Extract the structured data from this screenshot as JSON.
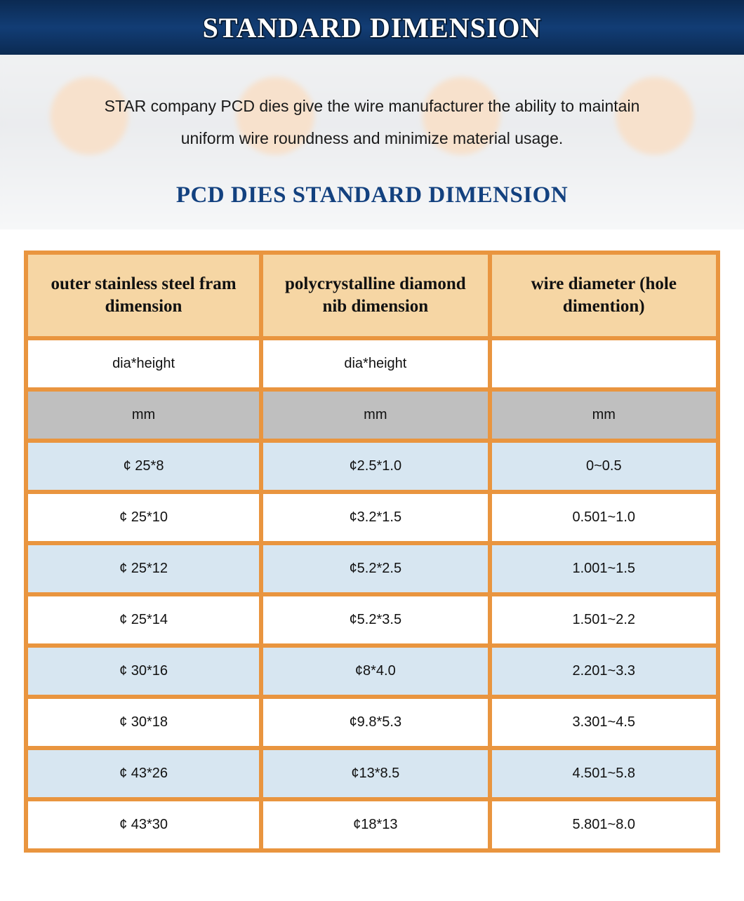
{
  "header": {
    "title": "STANDARD DIMENSION"
  },
  "intro": "STAR company PCD dies give the wire manufacturer the ability to maintain uniform wire roundness and minimize material usage.",
  "subtitle": "PCD DIES STANDARD DIMENSION",
  "table": {
    "columns": [
      "outer stainless steel fram dimension",
      "polycrystalline diamond nib dimension",
      "wire diameter (hole dimention)"
    ],
    "subheader": [
      "dia*height",
      "dia*height",
      ""
    ],
    "units": [
      "mm",
      "mm",
      "mm"
    ],
    "rows": [
      [
        "¢ 25*8",
        "¢2.5*1.0",
        "0~0.5"
      ],
      [
        "¢ 25*10",
        "¢3.2*1.5",
        "0.501~1.0"
      ],
      [
        "¢ 25*12",
        "¢5.2*2.5",
        "1.001~1.5"
      ],
      [
        "¢ 25*14",
        "¢5.2*3.5",
        "1.501~2.2"
      ],
      [
        "¢ 30*16",
        "¢8*4.0",
        "2.201~3.3"
      ],
      [
        "¢ 30*18",
        "¢9.8*5.3",
        "3.301~4.5"
      ],
      [
        "¢ 43*26",
        "¢13*8.5",
        "4.501~5.8"
      ],
      [
        "¢ 43*30",
        "¢18*13",
        "5.801~8.0"
      ]
    ],
    "header_bg": "#f6d6a4",
    "gap_color": "#e9953f",
    "unit_bg": "#bfbfbf",
    "stripe_a": "#d7e6f1",
    "stripe_b": "#ffffff",
    "header_fontsize": 25,
    "cell_fontsize": 20,
    "col_widths_pct": [
      34,
      33,
      33
    ]
  },
  "colors": {
    "band_gradient": [
      "#0b2a52",
      "#123d75",
      "#0b2a52"
    ],
    "subtitle": "#13417f"
  }
}
